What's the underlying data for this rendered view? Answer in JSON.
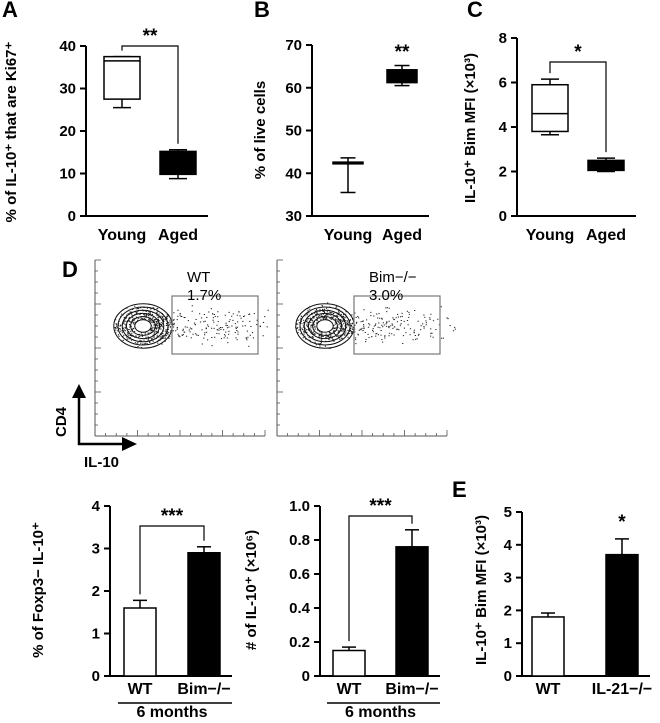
{
  "chart_data": [
    {
      "id": "A",
      "type": "box",
      "ylabel": "% of IL-10⁺ that are Ki67⁺",
      "ylim": [
        0,
        40
      ],
      "yticks": [
        0,
        10,
        20,
        30,
        40
      ],
      "categories": [
        "Young",
        "Aged"
      ],
      "boxes": [
        {
          "min": 25.5,
          "q1": 27.5,
          "median": 36.5,
          "q3": 37.5,
          "max": 37.5,
          "fill": "#ffffff"
        },
        {
          "min": 8.8,
          "q1": 9.8,
          "median": 14.5,
          "q3": 15.2,
          "max": 15.6,
          "fill": "#000000"
        }
      ],
      "significance": "**"
    },
    {
      "id": "B",
      "type": "box",
      "ylabel": "% of live cells",
      "ylim": [
        30,
        70
      ],
      "yticks": [
        30,
        40,
        50,
        60,
        70
      ],
      "categories": [
        "Young",
        "Aged"
      ],
      "boxes": [
        {
          "min": 35.5,
          "q1": 42.2,
          "median": 42.4,
          "q3": 42.6,
          "max": 43.6,
          "fill": "#ffffff"
        },
        {
          "min": 60.5,
          "q1": 61.2,
          "median": 63.0,
          "q3": 64.2,
          "max": 65.2,
          "fill": "#000000"
        }
      ],
      "significance": "**"
    },
    {
      "id": "C",
      "type": "box",
      "ylabel": "IL-10⁺ Bim MFI (×10³)",
      "ylim": [
        0,
        8
      ],
      "yticks": [
        0,
        2,
        4,
        6,
        8
      ],
      "categories": [
        "Young",
        "Aged"
      ],
      "boxes": [
        {
          "min": 3.65,
          "q1": 3.8,
          "median": 4.6,
          "q3": 5.9,
          "max": 6.15,
          "fill": "#ffffff"
        },
        {
          "min": 2.0,
          "q1": 2.05,
          "median": 2.35,
          "q3": 2.5,
          "max": 2.6,
          "fill": "#000000"
        }
      ],
      "significance": "*"
    },
    {
      "id": "D-left",
      "type": "bar",
      "ylabel": "% of Foxp3− IL-10⁺",
      "ylim": [
        0,
        4
      ],
      "yticks": [
        "0",
        "1",
        "2",
        "3",
        "4"
      ],
      "categories": [
        "WT",
        "Bim−/−"
      ],
      "values": [
        1.6,
        2.9
      ],
      "errors": [
        0.18,
        0.14
      ],
      "fills": [
        "#ffffff",
        "#000000"
      ],
      "group_label": "6 months",
      "significance": "***"
    },
    {
      "id": "D-right",
      "type": "bar",
      "ylabel": "# of IL-10⁺ (×10⁶)",
      "ylim": [
        0,
        1.0
      ],
      "yticks": [
        "0",
        "0.2",
        "0.4",
        "0.6",
        "0.8",
        "1.0"
      ],
      "categories": [
        "WT",
        "Bim−/−"
      ],
      "values": [
        0.15,
        0.76
      ],
      "errors": [
        0.02,
        0.1
      ],
      "fills": [
        "#ffffff",
        "#000000"
      ],
      "group_label": "6 months",
      "significance": "***"
    },
    {
      "id": "E",
      "type": "bar",
      "ylabel": "IL-10⁺ Bim MFI (×10³)",
      "ylim": [
        0,
        5
      ],
      "yticks": [
        "0",
        "1",
        "2",
        "3",
        "4",
        "5"
      ],
      "categories": [
        "WT",
        "IL-21−/−"
      ],
      "values": [
        1.8,
        3.7
      ],
      "errors": [
        0.12,
        0.48
      ],
      "fills": [
        "#ffffff",
        "#000000"
      ],
      "significance": "*"
    }
  ],
  "flow": {
    "panel_letter": "D",
    "gates": [
      {
        "name": "WT",
        "percent": "1.7%"
      },
      {
        "name": "Bim−/−",
        "percent": "3.0%"
      }
    ],
    "y_axis_label": "CD4",
    "x_axis_label": "IL-10"
  }
}
